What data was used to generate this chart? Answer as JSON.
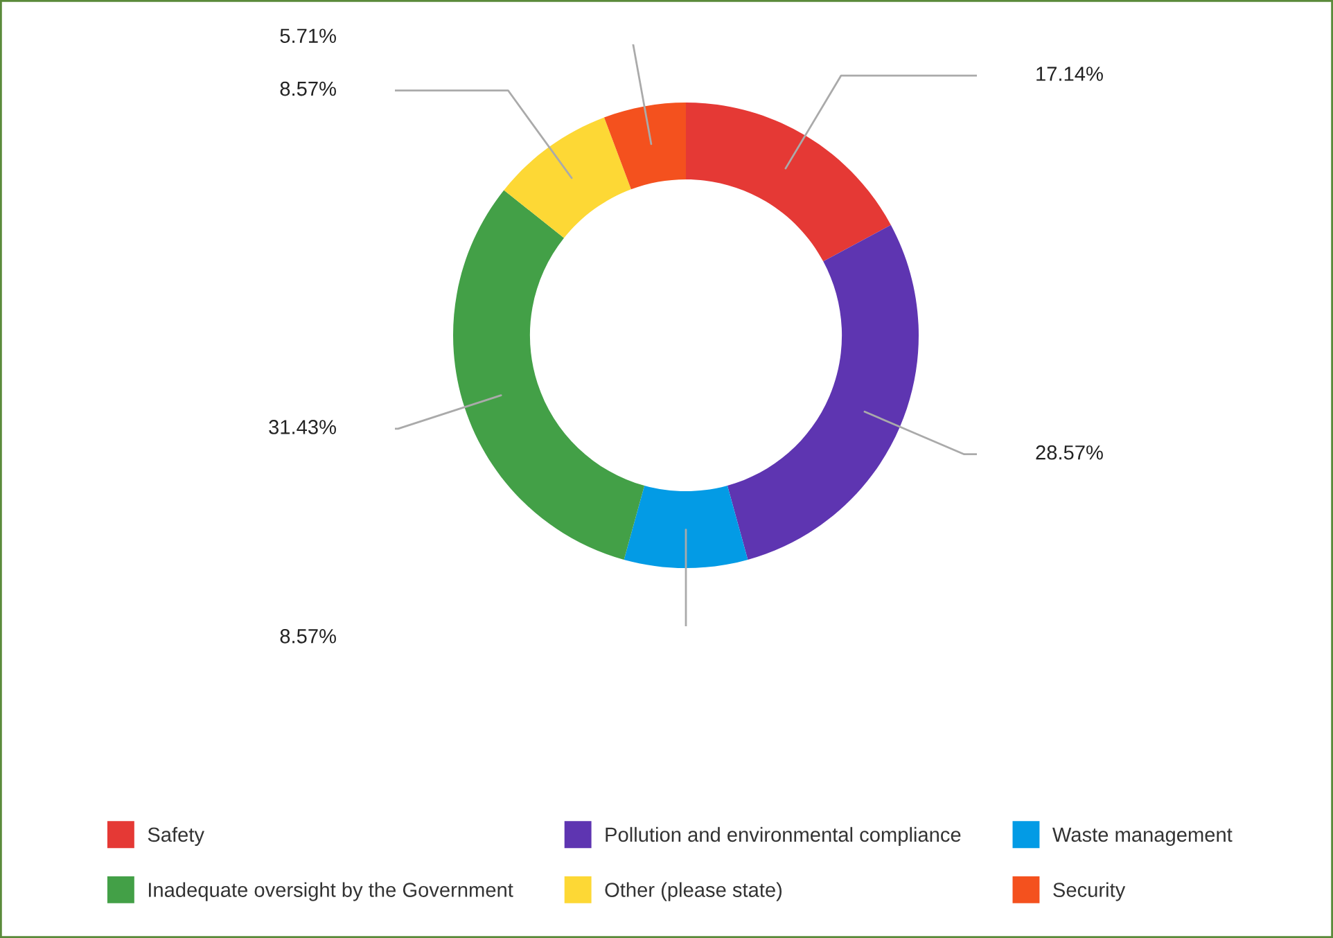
{
  "chart_data": {
    "type": "donut",
    "categories": [
      "Safety",
      "Pollution and environmental compliance",
      "Waste management",
      "Inadequate oversight by the Government",
      "Other (please state)",
      "Security"
    ],
    "values": [
      17.14,
      28.57,
      8.57,
      31.43,
      8.57,
      5.71
    ],
    "colors": [
      "#e53935",
      "#5e35b1",
      "#039be5",
      "#43a047",
      "#fdd835",
      "#f4511e"
    ],
    "value_labels": [
      "17.14%",
      "28.57%",
      "8.57%",
      "31.43%",
      "8.57%",
      "5.71%"
    ],
    "legend": "bottom"
  }
}
